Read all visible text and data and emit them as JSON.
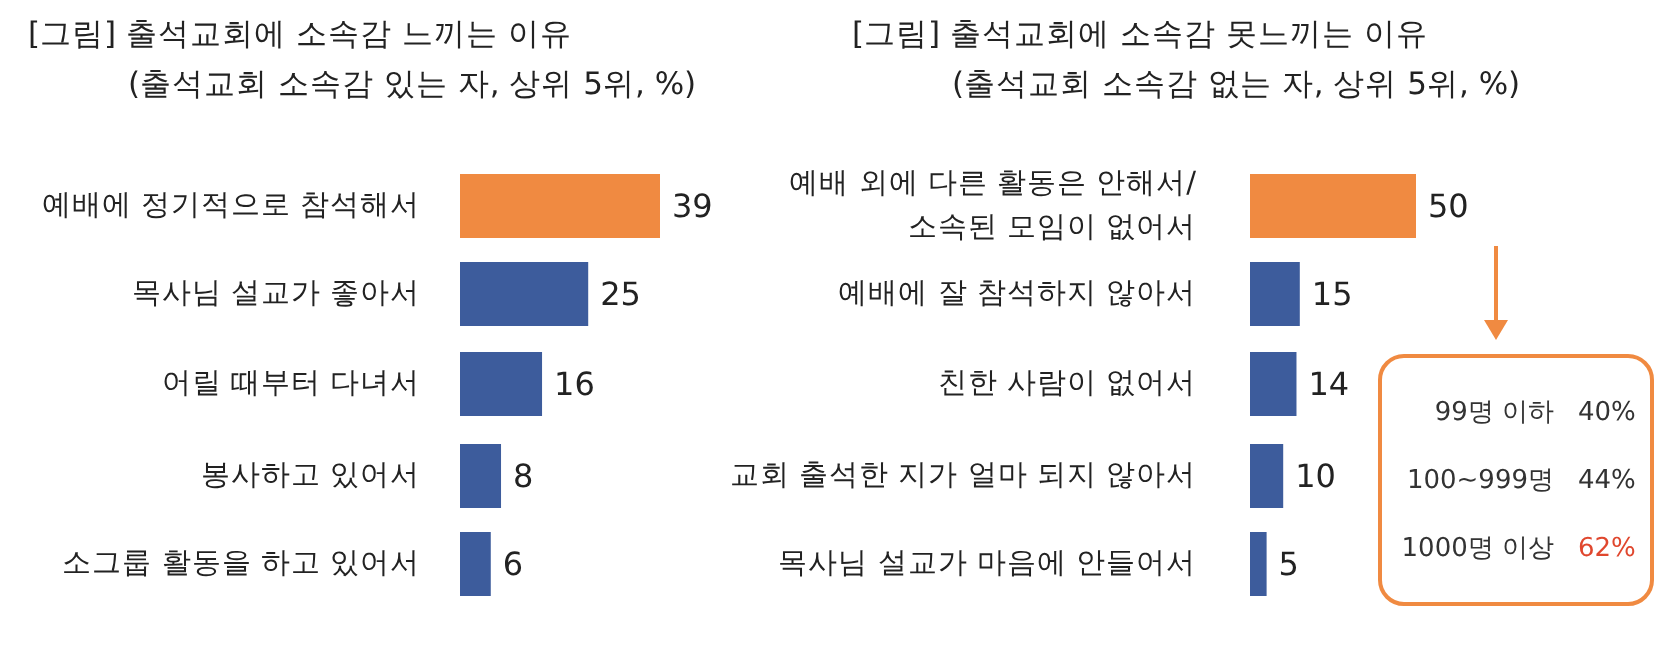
{
  "chart_data": [
    {
      "type": "bar",
      "orientation": "horizontal",
      "title": "[그림] 출석교회에 소속감 느끼는 이유",
      "subtitle": "(출석교회 소속감 있는 자, 상위 5위, %)",
      "categories": [
        "예배에 정기적으로 참석해서",
        "목사님 설교가 좋아서",
        "어릴 때부터 다녀서",
        "봉사하고 있어서",
        "소그룹 활동을 하고 있어서"
      ],
      "values": [
        39,
        25,
        16,
        8,
        6
      ],
      "colors": [
        "#f08a41",
        "#3d5c9c",
        "#3d5c9c",
        "#3d5c9c",
        "#3d5c9c"
      ],
      "data_labels": true
    },
    {
      "type": "bar",
      "orientation": "horizontal",
      "title": "[그림] 출석교회에 소속감 못느끼는 이유",
      "subtitle": "(출석교회 소속감 없는 자, 상위 5위, %)",
      "categories": [
        "예배 외에 다른 활동은 안해서/\n소속된 모임이 없어서",
        "예배에 잘 참석하지 않아서",
        "친한 사람이 없어서",
        "교회 출석한 지가 얼마 되지 않아서",
        "목사님 설교가 마음에 안들어서"
      ],
      "values": [
        50,
        15,
        14,
        10,
        5
      ],
      "colors": [
        "#f08a41",
        "#3d5c9c",
        "#3d5c9c",
        "#3d5c9c",
        "#3d5c9c"
      ],
      "data_labels": true,
      "annotations": [
        "99명 이하 40%",
        "100~999명 44%",
        "1000명 이상 62%"
      ]
    }
  ]
}
